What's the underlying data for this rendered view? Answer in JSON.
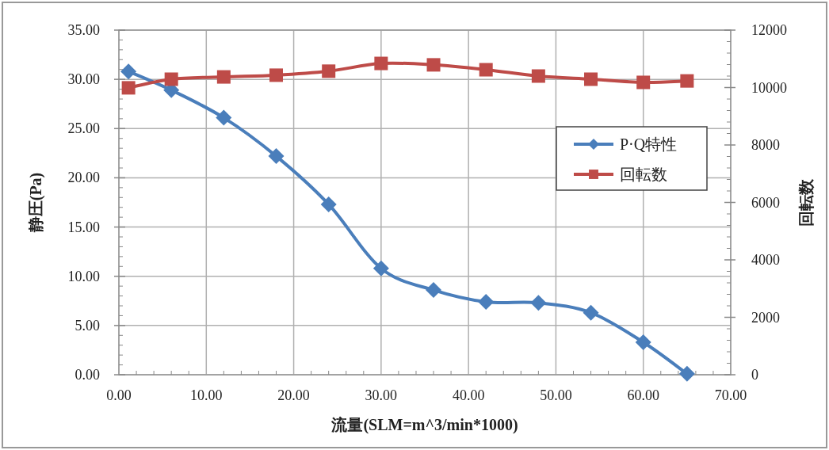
{
  "chart_data": {
    "type": "line",
    "xlabel": "流量(SLM=m^3/min*1000)",
    "ylabel": "静圧(Pa)",
    "y2label": "回転数",
    "x": [
      1.1,
      6,
      12,
      18,
      24,
      30,
      36,
      42,
      48,
      54,
      60,
      65
    ],
    "series": [
      {
        "name": "P·Q特性",
        "color": "#4a7ebb",
        "marker": "diamond",
        "values": [
          30.8,
          28.9,
          26.1,
          22.2,
          17.3,
          10.8,
          8.6,
          7.4,
          7.3,
          6.3,
          3.3,
          0.1
        ]
      },
      {
        "name": "回転数",
        "color": "#be4b48",
        "marker": "square",
        "axis": "y2",
        "values": [
          9990,
          10290,
          10370,
          10430,
          10570,
          10840,
          10790,
          10620,
          10400,
          10290,
          10180,
          10230
        ]
      }
    ],
    "xlim": [
      0,
      70
    ],
    "xticks": [
      {
        "value": 0,
        "label": "0.00"
      },
      {
        "value": 10,
        "label": "10.00"
      },
      {
        "value": 20,
        "label": "20.00"
      },
      {
        "value": 30,
        "label": "30.00"
      },
      {
        "value": 40,
        "label": "40.00"
      },
      {
        "value": 50,
        "label": "50.00"
      },
      {
        "value": 60,
        "label": "60.00"
      },
      {
        "value": 70,
        "label": "70.00"
      }
    ],
    "ylim": [
      0,
      35
    ],
    "yticks": [
      {
        "value": 0,
        "label": "0.00"
      },
      {
        "value": 5,
        "label": "5.00"
      },
      {
        "value": 10,
        "label": "10.00"
      },
      {
        "value": 15,
        "label": "15.00"
      },
      {
        "value": 20,
        "label": "20.00"
      },
      {
        "value": 25,
        "label": "25.00"
      },
      {
        "value": 30,
        "label": "30.00"
      },
      {
        "value": 35,
        "label": "35.00"
      }
    ],
    "y2lim": [
      0,
      12000
    ],
    "y2ticks": [
      0,
      2000,
      4000,
      6000,
      8000,
      10000,
      12000
    ],
    "grid": true,
    "legend": "right",
    "line_style": "solid"
  }
}
